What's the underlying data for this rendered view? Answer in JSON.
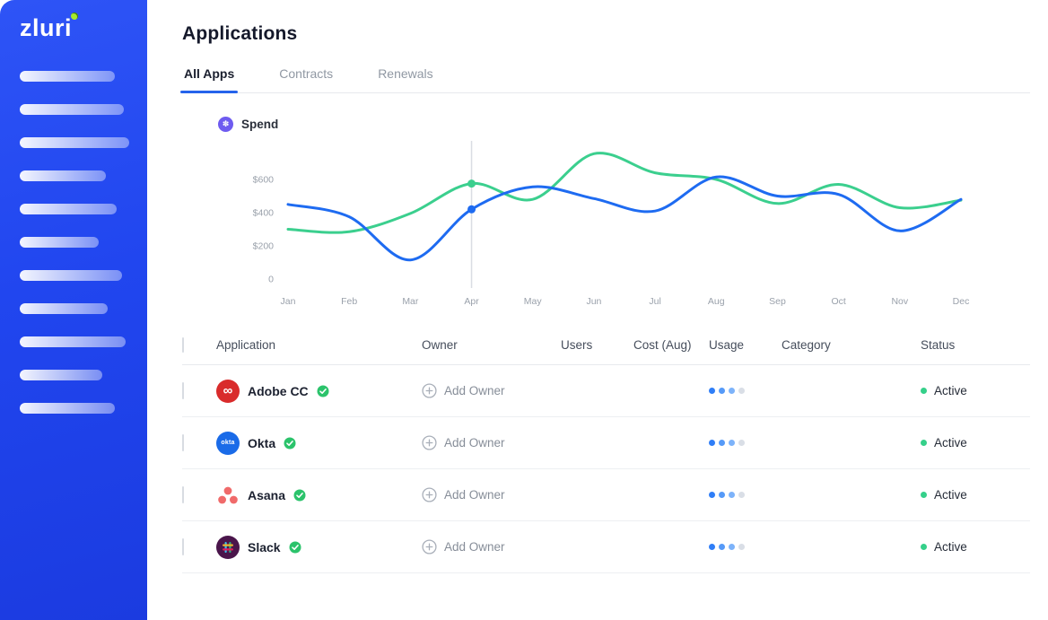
{
  "sidebar": {
    "logo_text": "zluri"
  },
  "page": {
    "title": "Applications"
  },
  "tabs": {
    "all_apps": "All Apps",
    "contracts": "Contracts",
    "renewals": "Renewals"
  },
  "legend": {
    "spend_label": "Spend"
  },
  "chart_data": {
    "type": "line",
    "x": [
      "Jan",
      "Feb",
      "Mar",
      "Apr",
      "May",
      "Jun",
      "Jul",
      "Aug",
      "Sep",
      "Oct",
      "Nov",
      "Dec"
    ],
    "ylim": [
      0,
      800
    ],
    "yticks": [
      {
        "value": 600,
        "label": "$600"
      },
      {
        "value": 400,
        "label": "$400"
      },
      {
        "value": 200,
        "label": "$200"
      },
      {
        "value": 0,
        "label": "0"
      }
    ],
    "marker_index": 3,
    "series": [
      {
        "name": "spend-green",
        "color": "#3BCF8E",
        "values": [
          300,
          285,
          395,
          575,
          480,
          755,
          640,
          600,
          455,
          570,
          430,
          475
        ]
      },
      {
        "name": "spend-blue",
        "color": "#1E6BF1",
        "values": [
          450,
          375,
          115,
          420,
          555,
          485,
          410,
          615,
          500,
          510,
          290,
          480
        ]
      }
    ],
    "grid": false,
    "legend_position": "top-left",
    "title": "Spend"
  },
  "table": {
    "headers": {
      "application": "Application",
      "owner": "Owner",
      "users": "Users",
      "cost": "Cost (Aug)",
      "usage": "Usage",
      "category": "Category",
      "status": "Status"
    },
    "rows": [
      {
        "app": "Adobe CC",
        "icon": "adobe-cc-icon",
        "verified": true,
        "owner_action": "Add Owner",
        "users": "",
        "cost": "",
        "usage": {
          "filled": 3,
          "total": 4
        },
        "category": "",
        "status": "Active"
      },
      {
        "app": "Okta",
        "icon": "okta-icon",
        "icon_label": "okta",
        "verified": true,
        "owner_action": "Add Owner",
        "users": "",
        "cost": "",
        "usage": {
          "filled": 3,
          "total": 4
        },
        "category": "",
        "status": "Active"
      },
      {
        "app": "Asana",
        "icon": "asana-icon",
        "verified": true,
        "owner_action": "Add Owner",
        "users": "",
        "cost": "",
        "usage": {
          "filled": 3,
          "total": 4
        },
        "category": "",
        "status": "Active"
      },
      {
        "app": "Slack",
        "icon": "slack-icon",
        "verified": true,
        "owner_action": "Add Owner",
        "users": "",
        "cost": "",
        "usage": {
          "filled": 3,
          "total": 4
        },
        "category": "",
        "status": "Active"
      }
    ]
  },
  "theme": {
    "sidebar_blue": "#2247F2",
    "accent_blue": "#2563EB",
    "chart_blue": "#1E6BF1",
    "chart_green": "#3BCF8E",
    "status_green": "#35D08A",
    "verified_green": "#2BC36B"
  }
}
